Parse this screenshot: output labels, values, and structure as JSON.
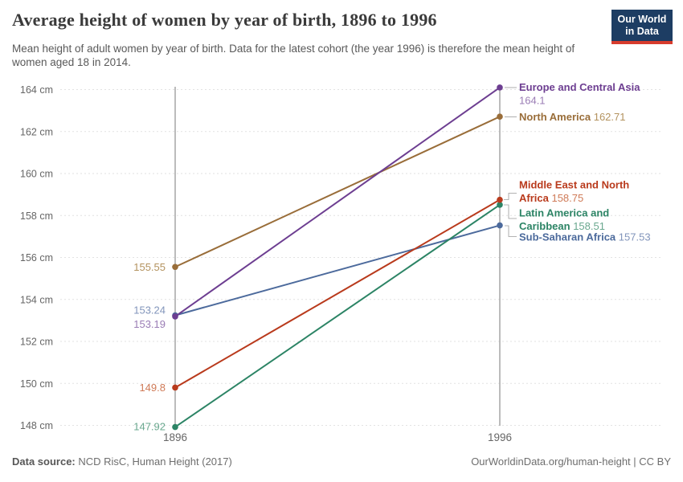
{
  "header": {
    "title": "Average height of women by year of birth, 1896 to 1996",
    "subtitle": "Mean height of adult women by year of birth. Data for the latest cohort (the year 1996) is therefore the mean height of women aged 18 in 2014.",
    "logo": {
      "line1": "Our World",
      "line2": "in Data",
      "bg_color": "#1d3d63",
      "accent_color": "#d73c2d"
    }
  },
  "chart_data": {
    "type": "line",
    "title": "Average height of women by year of birth, 1896 to 1996",
    "x": [
      1896,
      1996
    ],
    "x_tick_labels": [
      "1896",
      "1996"
    ],
    "y_ticks": [
      164,
      162,
      160,
      158,
      156,
      154,
      152,
      150,
      148
    ],
    "y_tick_suffix": " cm",
    "ylim": [
      147.5,
      164.6
    ],
    "grid": "horizontal-dashed",
    "series": [
      {
        "name": "Europe and Central Asia",
        "values": [
          153.19,
          164.1
        ],
        "color": "#6d3e91",
        "light_color": "#9a7cb5",
        "start_label": "153.19",
        "end_label_lines": [
          [
            {
              "t": "Europe and Central Asia",
              "s": "name"
            }
          ],
          [
            {
              "t": "164.1",
              "s": "value"
            }
          ]
        ]
      },
      {
        "name": "North America",
        "values": [
          155.55,
          162.71
        ],
        "color": "#996d39",
        "light_color": "#b3925e",
        "start_label": "155.55",
        "end_label_lines": [
          [
            {
              "t": "North America ",
              "s": "name"
            },
            {
              "t": "162.71",
              "s": "value"
            }
          ]
        ]
      },
      {
        "name": "Middle East and North Africa",
        "values": [
          149.8,
          158.75
        ],
        "color": "#b93a1c",
        "light_color": "#cf7a57",
        "start_label": "149.8",
        "end_label_lines": [
          [
            {
              "t": "Middle East and North",
              "s": "name"
            }
          ],
          [
            {
              "t": "Africa ",
              "s": "name"
            },
            {
              "t": "158.75",
              "s": "value"
            }
          ]
        ]
      },
      {
        "name": "Latin America and Caribbean",
        "values": [
          147.92,
          158.51
        ],
        "color": "#2c8465",
        "light_color": "#6aa88f",
        "start_label": "147.92",
        "end_label_lines": [
          [
            {
              "t": "Latin America and",
              "s": "name"
            }
          ],
          [
            {
              "t": "Caribbean ",
              "s": "name"
            },
            {
              "t": "158.51",
              "s": "value"
            }
          ]
        ]
      },
      {
        "name": "Sub-Saharan Africa",
        "values": [
          153.24,
          157.53
        ],
        "color": "#4c6a9c",
        "light_color": "#8295bb",
        "start_label": "153.24",
        "end_label_lines": [
          [
            {
              "t": "Sub-Saharan Africa ",
              "s": "name"
            },
            {
              "t": "157.53",
              "s": "value"
            }
          ]
        ]
      }
    ]
  },
  "footer": {
    "source_label": "Data source:",
    "source_text": " NCD RisC, Human Height (2017)",
    "right_text": "OurWorldinData.org/human-height | CC BY"
  }
}
